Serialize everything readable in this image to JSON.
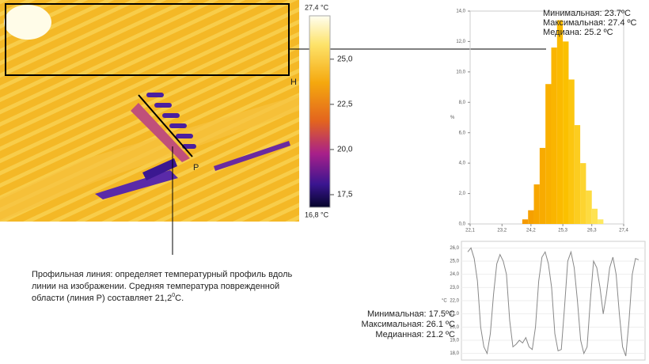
{
  "image": {
    "region_label": "H",
    "line_label": "P",
    "colorbar": {
      "max_label": "27,4 °C",
      "min_label": "16,8 °C",
      "lim": [
        16.8,
        27.4
      ],
      "ticks": [
        {
          "value": 25.0,
          "label": "25,0"
        },
        {
          "value": 22.5,
          "label": "22,5"
        },
        {
          "value": 20.0,
          "label": "20,0"
        },
        {
          "value": 17.5,
          "label": "17,5"
        }
      ]
    },
    "caption": {
      "lines": [
        "Профильная линия: определяет температурный профиль вдоль",
        "линии на изображении. Средняя температура поврежденной",
        "области (линия Р) составляет 21,2"
      ],
      "superscript": "0",
      "tail": "C."
    }
  },
  "chart_data": [
    {
      "type": "histogram",
      "y_label": "%",
      "bins": [
        23.9,
        24.1,
        24.3,
        24.5,
        24.7,
        24.9,
        25.1,
        25.3,
        25.5,
        25.7,
        25.9,
        26.1,
        26.3,
        26.5,
        26.7
      ],
      "values": [
        0.3,
        0.9,
        2.6,
        5.0,
        9.2,
        11.6,
        13.4,
        12.0,
        9.5,
        6.5,
        4.0,
        2.2,
        1.0,
        0.3
      ],
      "colors": [
        "#f59a00",
        "#f6a000",
        "#f7a600",
        "#f8ab00",
        "#f9b000",
        "#fab500",
        "#fbba00",
        "#fbc000",
        "#fcc610",
        "#fccd20",
        "#fdd430",
        "#fddb40",
        "#fee250",
        "#fee960"
      ],
      "xlim": [
        22.1,
        27.4
      ],
      "xticks": [
        {
          "value": 22.1,
          "label": "22,1"
        },
        {
          "value": 23.2,
          "label": "23,2"
        },
        {
          "value": 24.2,
          "label": "24,2"
        },
        {
          "value": 25.3,
          "label": "25,3"
        },
        {
          "value": 26.3,
          "label": "26,3"
        },
        {
          "value": 27.4,
          "label": "27,4"
        }
      ],
      "ylim": [
        0,
        14
      ],
      "yticks": [
        {
          "value": 0,
          "label": "0,0"
        },
        {
          "value": 2,
          "label": "2,0"
        },
        {
          "value": 4,
          "label": "4,0"
        },
        {
          "value": 6,
          "label": "6,0"
        },
        {
          "value": 8,
          "label": "8,0"
        },
        {
          "value": 10,
          "label": "10,0"
        },
        {
          "value": 12,
          "label": "12,0"
        },
        {
          "value": 14,
          "label": "14,0"
        }
      ],
      "annotations": [
        "Минимальная: 23.7ºC",
        "Максимальная: 27.4 ºC",
        "Медиана: 25.2 ºC"
      ]
    },
    {
      "type": "line",
      "color": "#888888",
      "y_label": "°C",
      "values": [
        25.7,
        26.0,
        25.2,
        23.5,
        20.0,
        18.5,
        18.0,
        19.5,
        22.5,
        24.8,
        25.5,
        25.0,
        24.0,
        20.5,
        18.5,
        18.7,
        19.0,
        18.8,
        19.2,
        18.5,
        18.3,
        20.0,
        23.5,
        25.3,
        25.7,
        24.8,
        23.0,
        19.5,
        18.2,
        18.3,
        21.5,
        25.0,
        25.7,
        24.5,
        22.0,
        19.0,
        18.0,
        18.5,
        22.0,
        25.0,
        24.5,
        23.0,
        21.0,
        22.5,
        24.5,
        25.3,
        24.0,
        21.0,
        18.5,
        17.8,
        20.5,
        24.0,
        25.2,
        25.1
      ],
      "ylim": [
        17.5,
        26.5
      ],
      "yticks": [
        {
          "value": 18,
          "label": "18,0"
        },
        {
          "value": 19,
          "label": "19,0"
        },
        {
          "value": 20,
          "label": "20,0"
        },
        {
          "value": 21,
          "label": "21,0"
        },
        {
          "value": 22,
          "label": "22,0"
        },
        {
          "value": 23,
          "label": "23,0"
        },
        {
          "value": 24,
          "label": "24,0"
        },
        {
          "value": 25,
          "label": "25,0"
        },
        {
          "value": 26,
          "label": "26,0"
        }
      ],
      "annotations": [
        "Минимальная: 17.5ºC",
        "Максимальная: 26.1 ºC",
        "Медианная: 21.2 ºC"
      ]
    }
  ]
}
